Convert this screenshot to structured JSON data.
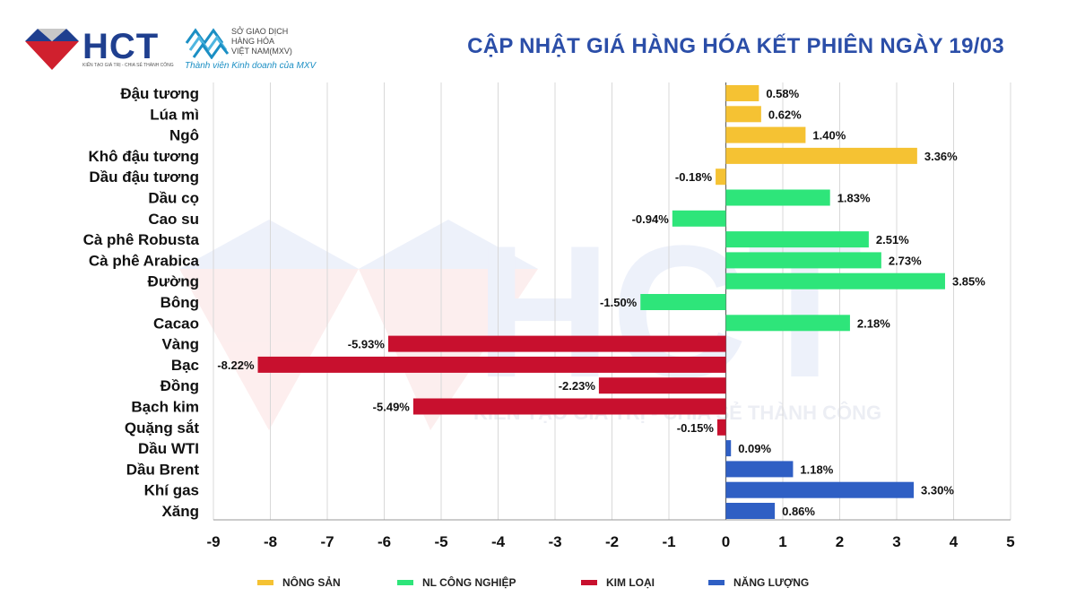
{
  "header": {
    "hct_name": "HCT",
    "hct_tagline": "KIẾN TẠO GIÁ TRỊ - CHIA SẺ THÀNH CÔNG",
    "mxv_line1": "SỞ GIAO DỊCH",
    "mxv_line2": "HÀNG HÓA",
    "mxv_line3": "VIỆT NAM(MXV)",
    "mxv_tagline": "Thành viên Kinh doanh của MXV",
    "title": "CẬP NHẬT GIÁ HÀNG HÓA KẾT PHIÊN NGÀY 19/03"
  },
  "watermark_tagline": "KIẾN TẠO GIÁ TRỊ - CHIA SẺ THÀNH CÔNG",
  "colors": {
    "nong_san": "#f5c233",
    "nl_cong_nghiep": "#2ee57a",
    "kim_loai": "#c8102e",
    "nang_luong": "#2f5fc4"
  },
  "chart_data": {
    "type": "bar",
    "orientation": "horizontal",
    "title": "CẬP NHẬT GIÁ HÀNG HÓA KẾT PHIÊN NGÀY 19/03",
    "xlim": [
      -9,
      5
    ],
    "xticks": [
      "-9",
      "-8",
      "-7",
      "-6",
      "-5",
      "-4",
      "-3",
      "-2",
      "-1",
      "0",
      "1",
      "2",
      "3",
      "4",
      "5"
    ],
    "grid": true,
    "legend_position": "bottom",
    "groups": [
      {
        "name": "NÔNG SẢN",
        "color": "#f5c233"
      },
      {
        "name": "NL CÔNG NGHIỆP",
        "color": "#2ee57a"
      },
      {
        "name": "KIM LOẠI",
        "color": "#c8102e"
      },
      {
        "name": "NĂNG LƯỢNG",
        "color": "#2f5fc4"
      }
    ],
    "bars": [
      {
        "label": "Đậu tương",
        "value": 0.58,
        "value_label": "0.58%",
        "group": 0
      },
      {
        "label": "Lúa mì",
        "value": 0.62,
        "value_label": "0.62%",
        "group": 0
      },
      {
        "label": "Ngô",
        "value": 1.4,
        "value_label": "1.40%",
        "group": 0
      },
      {
        "label": "Khô đậu tương",
        "value": 3.36,
        "value_label": "3.36%",
        "group": 0
      },
      {
        "label": "Dầu đậu tương",
        "value": -0.18,
        "value_label": "-0.18%",
        "group": 0
      },
      {
        "label": "Dầu cọ",
        "value": 1.83,
        "value_label": "1.83%",
        "group": 1
      },
      {
        "label": "Cao su",
        "value": -0.94,
        "value_label": "-0.94%",
        "group": 1
      },
      {
        "label": "Cà phê Robusta",
        "value": 2.51,
        "value_label": "2.51%",
        "group": 1
      },
      {
        "label": "Cà phê Arabica",
        "value": 2.73,
        "value_label": "2.73%",
        "group": 1
      },
      {
        "label": "Đường",
        "value": 3.85,
        "value_label": "3.85%",
        "group": 1
      },
      {
        "label": "Bông",
        "value": -1.5,
        "value_label": "-1.50%",
        "group": 1
      },
      {
        "label": "Cacao",
        "value": 2.18,
        "value_label": "2.18%",
        "group": 1
      },
      {
        "label": "Vàng",
        "value": -5.93,
        "value_label": "-5.93%",
        "group": 2
      },
      {
        "label": "Bạc",
        "value": -8.22,
        "value_label": "-8.22%",
        "group": 2
      },
      {
        "label": "Đồng",
        "value": -2.23,
        "value_label": "-2.23%",
        "group": 2
      },
      {
        "label": "Bạch kim",
        "value": -5.49,
        "value_label": "-5.49%",
        "group": 2
      },
      {
        "label": "Quặng sắt",
        "value": -0.15,
        "value_label": "-0.15%",
        "group": 2
      },
      {
        "label": "Dầu WTI",
        "value": 0.09,
        "value_label": "0.09%",
        "group": 3
      },
      {
        "label": "Dầu Brent",
        "value": 1.18,
        "value_label": "1.18%",
        "group": 3
      },
      {
        "label": "Khí gas",
        "value": 3.3,
        "value_label": "3.30%",
        "group": 3
      },
      {
        "label": "Xăng",
        "value": 0.86,
        "value_label": "0.86%",
        "group": 3
      }
    ]
  }
}
